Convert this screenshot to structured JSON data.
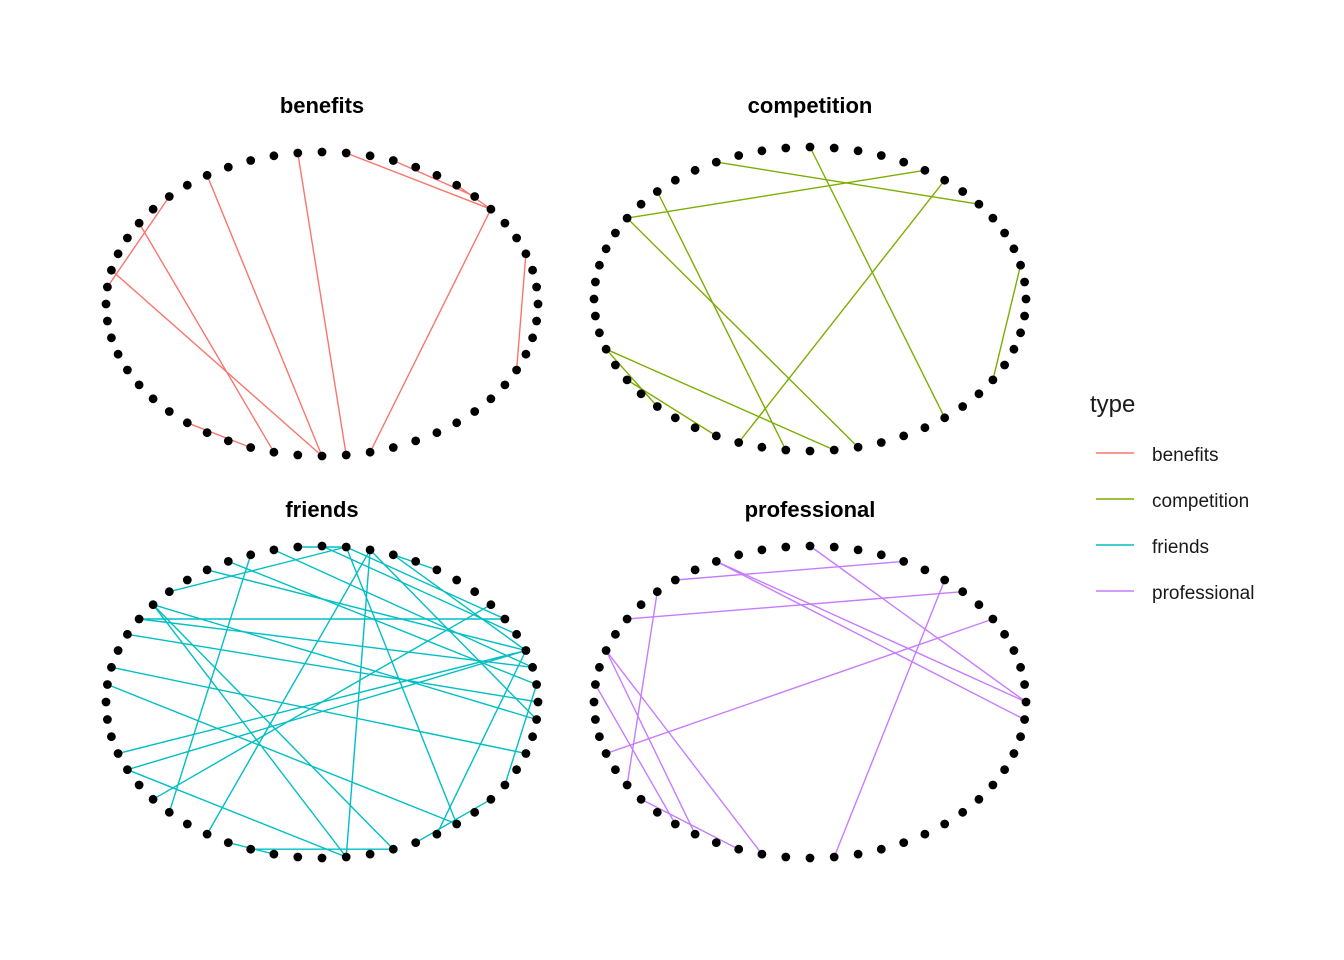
{
  "chart_data": {
    "type": "network",
    "layout": "circle",
    "nodes_per_panel": 56,
    "panels": [
      {
        "title": "benefits",
        "color": "#F8766D",
        "edges": [
          [
            3,
            52
          ],
          [
            13,
            6
          ],
          [
            44,
            6
          ],
          [
            6,
            8
          ],
          [
            7,
            11
          ],
          [
            15,
            43
          ],
          [
            19,
            42
          ],
          [
            26,
            42
          ],
          [
            23,
            40
          ],
          [
            21,
            27
          ],
          [
            39,
            36
          ]
        ]
      },
      {
        "title": "competition",
        "color": "#7CAE00",
        "edges": [
          [
            39,
            8
          ],
          [
            6,
            18
          ],
          [
            51,
            2
          ],
          [
            9,
            23
          ],
          [
            23,
            44
          ],
          [
            31,
            43
          ],
          [
            31,
            35
          ],
          [
            41,
            21
          ],
          [
            48,
            14
          ],
          [
            33,
            38
          ]
        ]
      },
      {
        "title": "friends",
        "color": "#00BFC4",
        "edges": [
          [
            12,
            37
          ],
          [
            11,
            3
          ],
          [
            23,
            5
          ],
          [
            23,
            2
          ],
          [
            32,
            3
          ],
          [
            3,
            19
          ],
          [
            24,
            0
          ],
          [
            22,
            43
          ],
          [
            32,
            43
          ],
          [
            18,
            1
          ],
          [
            22,
            55
          ],
          [
            26,
            53
          ],
          [
            43,
            12
          ],
          [
            12,
            55
          ],
          [
            22,
            45
          ],
          [
            27,
            48
          ],
          [
            31,
            3
          ],
          [
            21,
            13
          ],
          [
            13,
            48
          ],
          [
            51,
            1
          ],
          [
            3,
            47
          ],
          [
            13,
            15
          ],
          [
            40,
            38
          ],
          [
            39,
            45
          ],
          [
            5,
            13
          ],
          [
            11,
            9
          ],
          [
            35,
            17
          ],
          [
            4,
            14
          ],
          [
            46,
            50
          ],
          [
            2,
            16
          ],
          [
            34,
            6
          ]
        ]
      },
      {
        "title": "professional",
        "color": "#C77CFF",
        "edges": [
          [
            43,
            8
          ],
          [
            20,
            10
          ],
          [
            31,
            5
          ],
          [
            18,
            0
          ],
          [
            18,
            55
          ],
          [
            14,
            0
          ],
          [
            36,
            27
          ],
          [
            21,
            33
          ],
          [
            23,
            7
          ],
          [
            25,
            37
          ],
          [
            25,
            40
          ],
          [
            34,
            39
          ]
        ]
      }
    ],
    "legend": {
      "title": "type",
      "position": "right",
      "items": [
        {
          "label": "benefits",
          "color": "#F8766D"
        },
        {
          "label": "competition",
          "color": "#7CAE00"
        },
        {
          "label": "friends",
          "color": "#00BFC4"
        },
        {
          "label": "professional",
          "color": "#C77CFF"
        }
      ]
    },
    "node_color": "#000000",
    "grid": false,
    "axes": false
  }
}
